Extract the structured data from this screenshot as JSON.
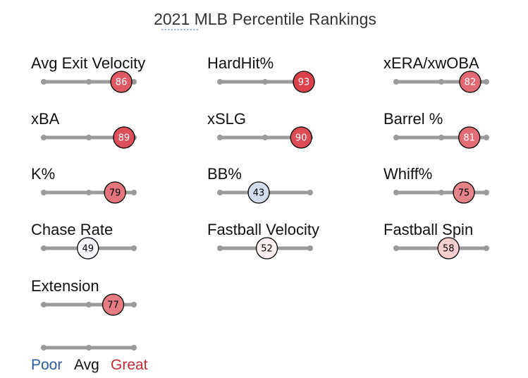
{
  "title": "2021 MLB Percentile Rankings",
  "colors": {
    "track": "#9b9b9b",
    "poor": "#2c5d9f",
    "avg": "#111111",
    "great": "#c72a33",
    "circle_stroke": "#000000"
  },
  "legend": {
    "poor": "Poor",
    "avg": "Avg",
    "great": "Great"
  },
  "chart_data": {
    "type": "percentile-slider",
    "title": "2021 MLB Percentile Rankings",
    "xlim": [
      0,
      100
    ],
    "metrics": [
      {
        "name": "Avg Exit Velocity",
        "value": 86
      },
      {
        "name": "HardHit%",
        "value": 93
      },
      {
        "name": "xERA/xwOBA",
        "value": 82
      },
      {
        "name": "xBA",
        "value": 89
      },
      {
        "name": "xSLG",
        "value": 90
      },
      {
        "name": "Barrel %",
        "value": 81
      },
      {
        "name": "K%",
        "value": 79
      },
      {
        "name": "BB%",
        "value": 43
      },
      {
        "name": "Whiff%",
        "value": 75
      },
      {
        "name": "Chase Rate",
        "value": 49
      },
      {
        "name": "Fastball Velocity",
        "value": 52
      },
      {
        "name": "Fastball Spin",
        "value": 58
      },
      {
        "name": "Extension",
        "value": 77
      }
    ]
  }
}
